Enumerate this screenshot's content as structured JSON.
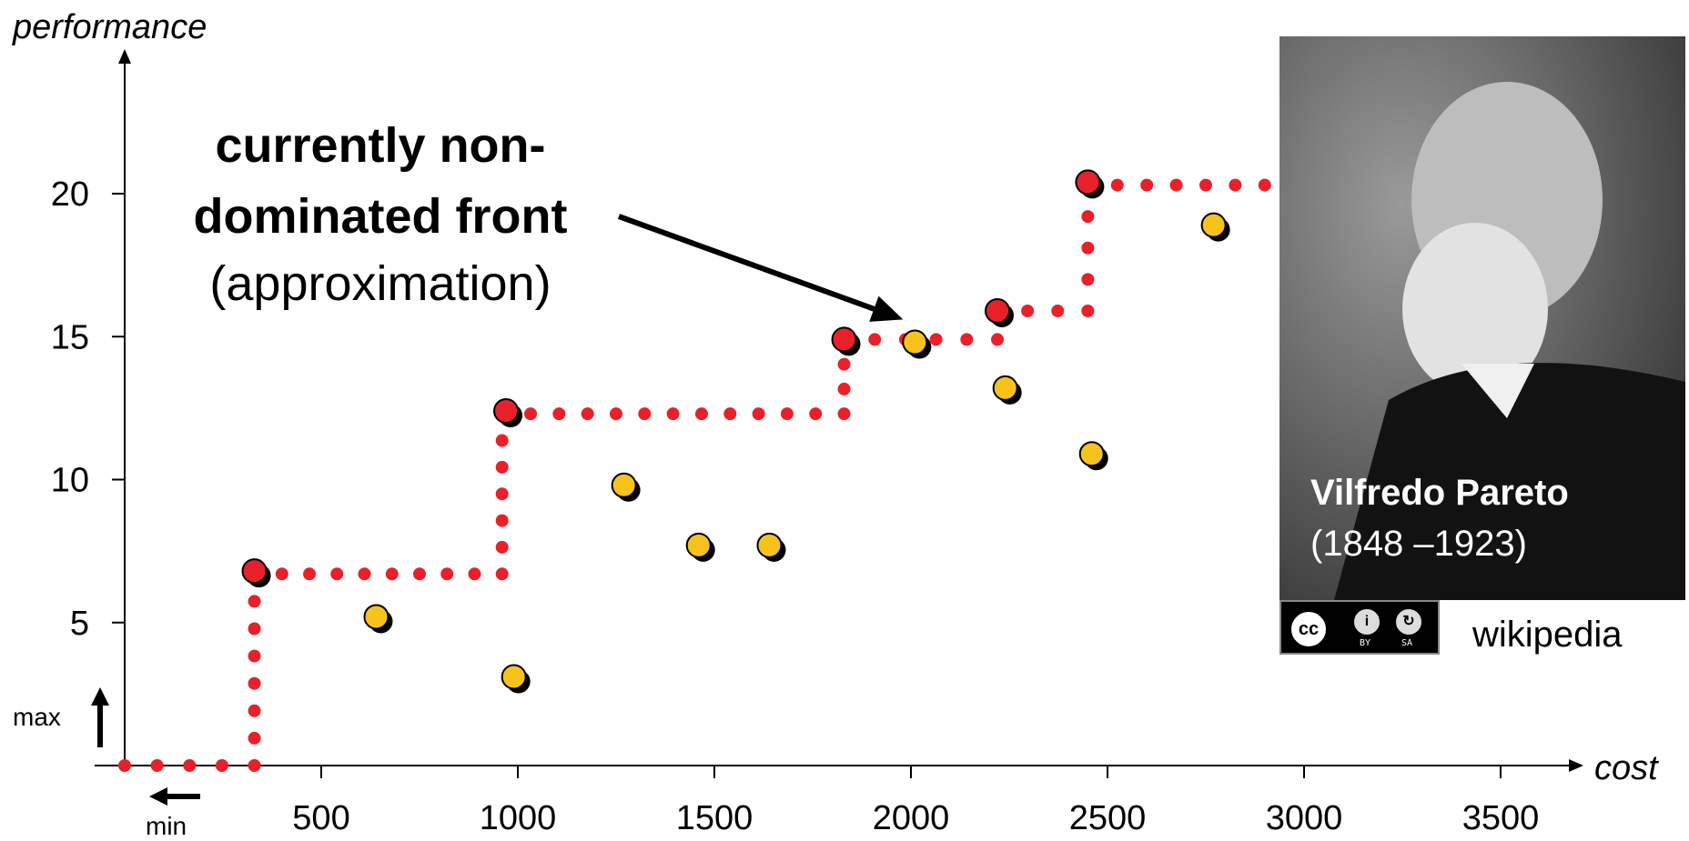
{
  "chart_data": {
    "type": "scatter",
    "xlabel": "cost",
    "ylabel": "performance",
    "x_ticks": [
      500,
      1000,
      1500,
      2000,
      2500,
      3000,
      3500
    ],
    "y_ticks": [
      5,
      10,
      15,
      20
    ],
    "xlim": [
      0,
      3700
    ],
    "ylim": [
      0,
      23
    ],
    "series": [
      {
        "color": "#e8202a",
        "points": [
          {
            "x": 330,
            "y": 6.8
          },
          {
            "x": 970,
            "y": 12.4
          },
          {
            "x": 1830,
            "y": 14.9
          },
          {
            "x": 2220,
            "y": 15.9
          },
          {
            "x": 2450,
            "y": 20.4
          }
        ]
      },
      {
        "color": "#f7c21b",
        "points": [
          {
            "x": 640,
            "y": 5.2
          },
          {
            "x": 990,
            "y": 3.1
          },
          {
            "x": 1270,
            "y": 9.8
          },
          {
            "x": 1460,
            "y": 7.7
          },
          {
            "x": 1640,
            "y": 7.7
          },
          {
            "x": 2010,
            "y": 14.8
          },
          {
            "x": 2240,
            "y": 13.2
          },
          {
            "x": 2460,
            "y": 10.9
          },
          {
            "x": 2770,
            "y": 18.9
          }
        ]
      }
    ],
    "front_line": {
      "color": "#e8202a",
      "steps": [
        {
          "x": 0,
          "y": 0
        },
        {
          "x": 330,
          "y": 0
        },
        {
          "x": 330,
          "y": 6.7
        },
        {
          "x": 960,
          "y": 6.7
        },
        {
          "x": 960,
          "y": 12.3
        },
        {
          "x": 1830,
          "y": 12.3
        },
        {
          "x": 1830,
          "y": 14.9
        },
        {
          "x": 2220,
          "y": 14.9
        },
        {
          "x": 2220,
          "y": 15.9
        },
        {
          "x": 2450,
          "y": 15.9
        },
        {
          "x": 2450,
          "y": 20.3
        },
        {
          "x": 2900,
          "y": 20.3
        }
      ]
    },
    "annotation": {
      "line1": "currently non-",
      "line2": "dominated front",
      "line3": "(approximation)",
      "arrow_target": {
        "x": 1980,
        "y": 15.6
      }
    },
    "direction_hints": {
      "max_label": "max",
      "min_label": "min"
    }
  },
  "photo": {
    "name": "Vilfredo Pareto",
    "years": "(1848 –1923)",
    "license": {
      "cc": "cc",
      "by": "BY",
      "sa": "SA"
    },
    "credit": "wikipedia"
  }
}
